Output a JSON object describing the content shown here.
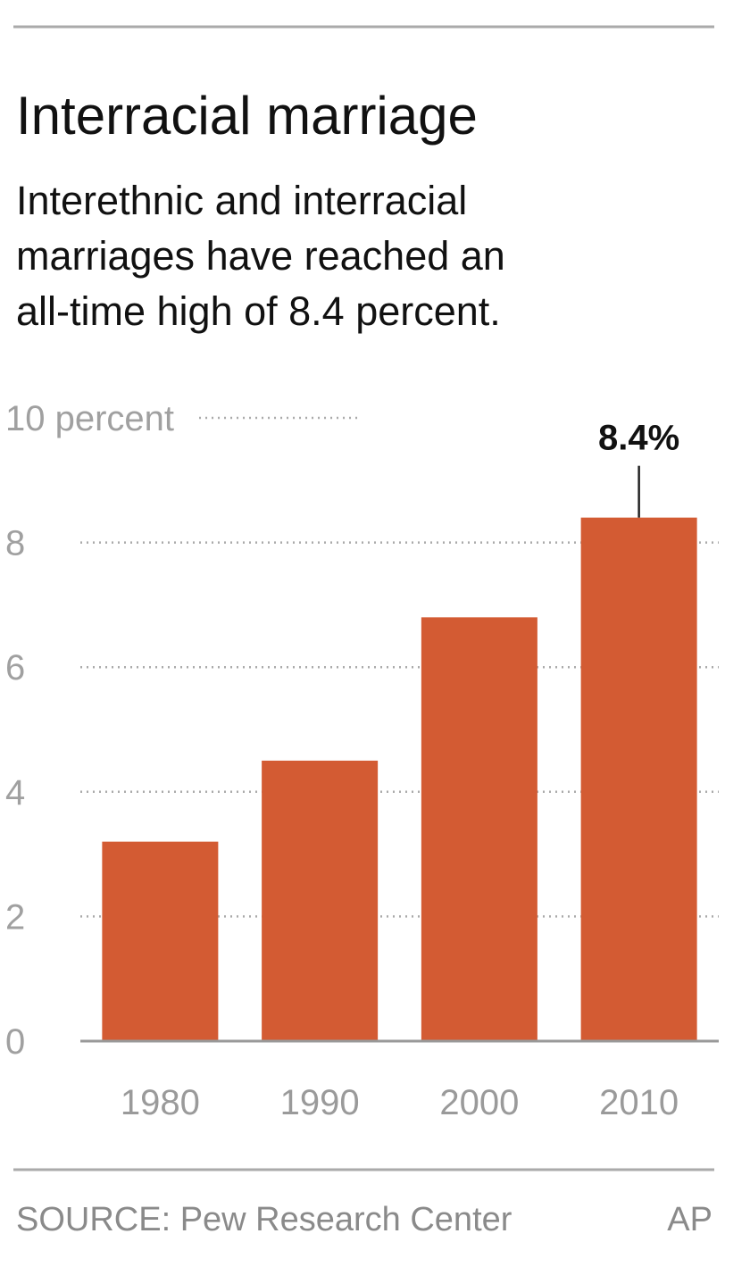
{
  "chart_data": {
    "type": "bar",
    "title": "Interracial marriage",
    "subtitle": [
      "Interethnic and interracial",
      "marriages have reached an",
      "all-time high of 8.4 percent."
    ],
    "categories": [
      "1980",
      "1990",
      "2000",
      "2010"
    ],
    "values": [
      3.2,
      4.5,
      6.8,
      8.4
    ],
    "value_labels": [
      null,
      null,
      null,
      "8.4%"
    ],
    "color": "#d35b33",
    "ylim": [
      0,
      10
    ],
    "yticks": [
      0,
      2,
      4,
      6,
      8,
      {
        "value": 10,
        "label": "10 percent"
      }
    ],
    "grid": true,
    "source": "SOURCE: Pew Research Center",
    "credit": "AP"
  }
}
